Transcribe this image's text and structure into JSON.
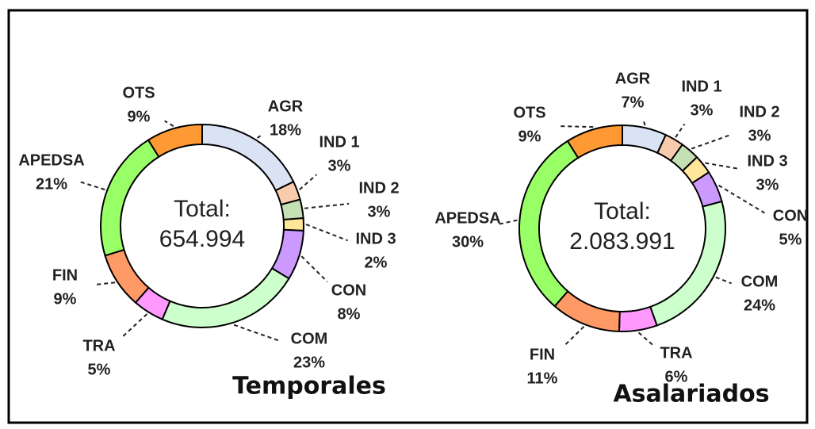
{
  "chart_data": [
    {
      "type": "pie",
      "donut": true,
      "title": "Temporales",
      "center_text": [
        "Total:",
        "654.994"
      ],
      "categories": [
        "AGR",
        "IND 1",
        "IND 2",
        "IND 3",
        "CON",
        "COM",
        "TRA",
        "FIN",
        "APEDSA",
        "OTS"
      ],
      "values": [
        18,
        3,
        3,
        2,
        8,
        23,
        5,
        9,
        21,
        9
      ],
      "value_labels": [
        "18%",
        "3%",
        "3%",
        "2%",
        "8%",
        "23%",
        "5%",
        "9%",
        "21%",
        "9%"
      ],
      "colors": [
        "#dae3f3",
        "#f8cbad",
        "#c5e0b4",
        "#ffe699",
        "#cc99ff",
        "#ccffcc",
        "#ff99ff",
        "#ff9966",
        "#99ff66",
        "#ff9933"
      ]
    },
    {
      "type": "pie",
      "donut": true,
      "title": "Asalariados",
      "center_text": [
        "Total:",
        "2.083.991"
      ],
      "categories": [
        "AGR",
        "IND 1",
        "IND 2",
        "IND 3",
        "CON",
        "COM",
        "TRA",
        "FIN",
        "APEDSA",
        "OTS"
      ],
      "values": [
        7,
        3,
        3,
        3,
        5,
        24,
        6,
        11,
        30,
        9
      ],
      "value_labels": [
        "7%",
        "3%",
        "3%",
        "3%",
        "5%",
        "24%",
        "6%",
        "11%",
        "30%",
        "9%"
      ],
      "colors": [
        "#dae3f3",
        "#f8cbad",
        "#c5e0b4",
        "#ffe699",
        "#cc99ff",
        "#ccffcc",
        "#ff99ff",
        "#ff9966",
        "#99ff66",
        "#ff9933"
      ]
    }
  ]
}
